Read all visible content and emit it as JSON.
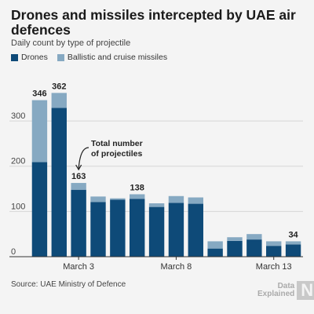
{
  "title": "Drones and missiles intercepted by UAE air defences",
  "subtitle": "Daily count by type of projectile",
  "source": "Source: UAE Ministry of Defence",
  "logo": {
    "line1": "Data",
    "line2": "Explained",
    "mark": "N"
  },
  "colors": {
    "drones": "#0e4a78",
    "missiles": "#86a9c2",
    "grid": "#d6d6d6",
    "axis": "#333333"
  },
  "chart_data": {
    "type": "bar",
    "stacked": true,
    "categories": [
      "1",
      "2",
      "3",
      "4",
      "5",
      "6",
      "7",
      "8",
      "9",
      "10",
      "11",
      "12",
      "13",
      "14"
    ],
    "series": [
      {
        "name": "Drones",
        "values": [
          209,
          329,
          148,
          121,
          126,
          128,
          110,
          119,
          117,
          18,
          35,
          38,
          24,
          27
        ]
      },
      {
        "name": "Ballistic and cruise missiles",
        "values": [
          137,
          33,
          15,
          12,
          3,
          10,
          8,
          15,
          14,
          16,
          8,
          12,
          10,
          7
        ]
      }
    ],
    "bar_labels": [
      "346",
      "362",
      "163",
      "",
      "",
      "138",
      "",
      "",
      "",
      "",
      "",
      "",
      "",
      "34"
    ],
    "yticks": [
      0,
      100,
      200,
      300
    ],
    "ylim": [
      0,
      380
    ],
    "xtick_labels": [
      {
        "index": 3,
        "label": "March 3"
      },
      {
        "index": 8,
        "label": "March 8"
      },
      {
        "index": 13,
        "label": "March 13"
      }
    ],
    "annotation": {
      "text_line1": "Total number",
      "text_line2": "of projectiles",
      "bar_index": 2
    },
    "grid": true,
    "legend_position": "top-left"
  }
}
